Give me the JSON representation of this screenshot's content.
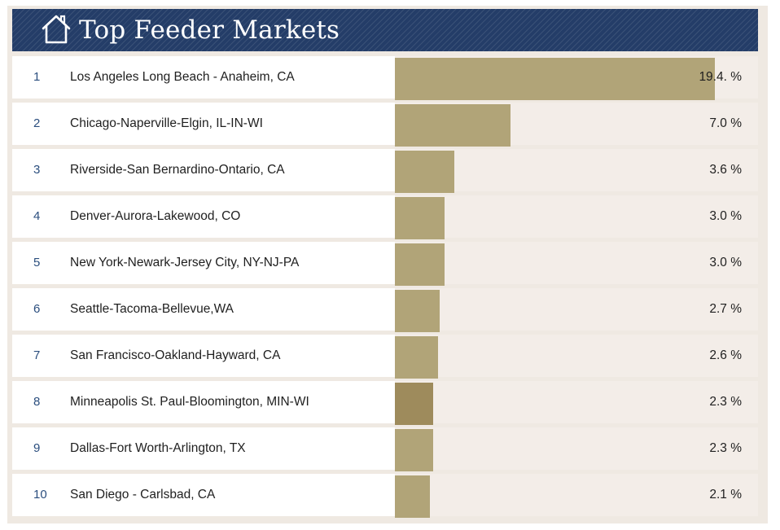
{
  "header": {
    "title": "Top Feeder Markets",
    "icon": "house-icon"
  },
  "colors": {
    "header_bg": "#243d68",
    "bar": "#b1a478",
    "bar_highlight": "#9e8b5c",
    "rank_text": "#2b4e7e"
  },
  "chart_data": {
    "type": "bar",
    "orientation": "horizontal",
    "title": "Top Feeder Markets",
    "xlim": [
      0,
      22
    ],
    "grid": false,
    "categories": [
      "Los Angeles Long Beach - Anaheim, CA",
      "Chicago-Naperville-Elgin, IL-IN-WI",
      "Riverside-San Bernardino-Ontario, CA",
      "Denver-Aurora-Lakewood, CO",
      "New York-Newark-Jersey City, NY-NJ-PA",
      "Seattle-Tacoma-Bellevue,WA",
      "San Francisco-Oakland-Hayward, CA",
      "Minneapolis St. Paul-Bloomington, MIN-WI",
      "Dallas-Fort Worth-Arlington, TX",
      "San Diego - Carlsbad, CA"
    ],
    "values": [
      19.4,
      7.0,
      3.6,
      3.0,
      3.0,
      2.7,
      2.6,
      2.3,
      2.3,
      2.1
    ],
    "ranks": [
      "1",
      "2",
      "3",
      "4",
      "5",
      "6",
      "7",
      "8",
      "9",
      "10"
    ],
    "value_labels": [
      "19.4. %",
      "7.0 %",
      "3.6 %",
      "3.0 %",
      "3.0 %",
      "2.7 %",
      "2.6 %",
      "2.3 %",
      "2.3 %",
      "2.1  %"
    ],
    "highlight_index": 7
  }
}
